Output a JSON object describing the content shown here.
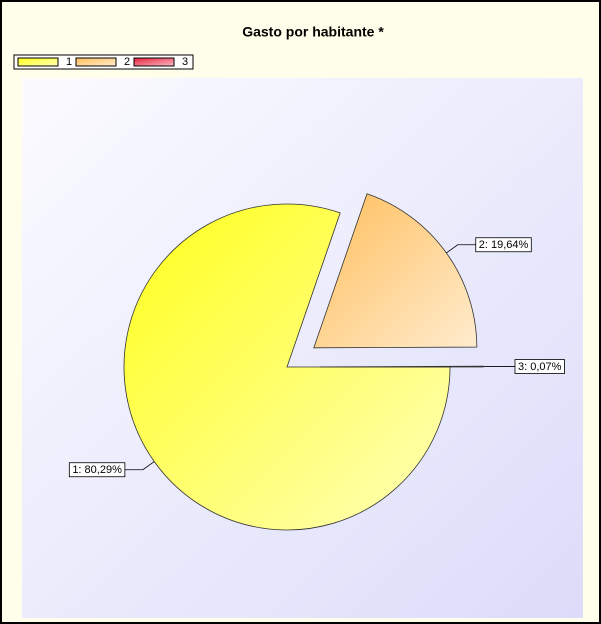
{
  "chart_data": {
    "type": "pie",
    "title": "Gasto por habitante *",
    "categories": [
      "1",
      "2",
      "3"
    ],
    "values": [
      80.29,
      19.64,
      0.07
    ],
    "value_labels": [
      "1: 80,29%",
      "2: 19,64%",
      "3: 0,07%"
    ],
    "colors": [
      "#ffff1a",
      "#ffbe5c",
      "#e8203c"
    ],
    "legend": "top-left"
  }
}
